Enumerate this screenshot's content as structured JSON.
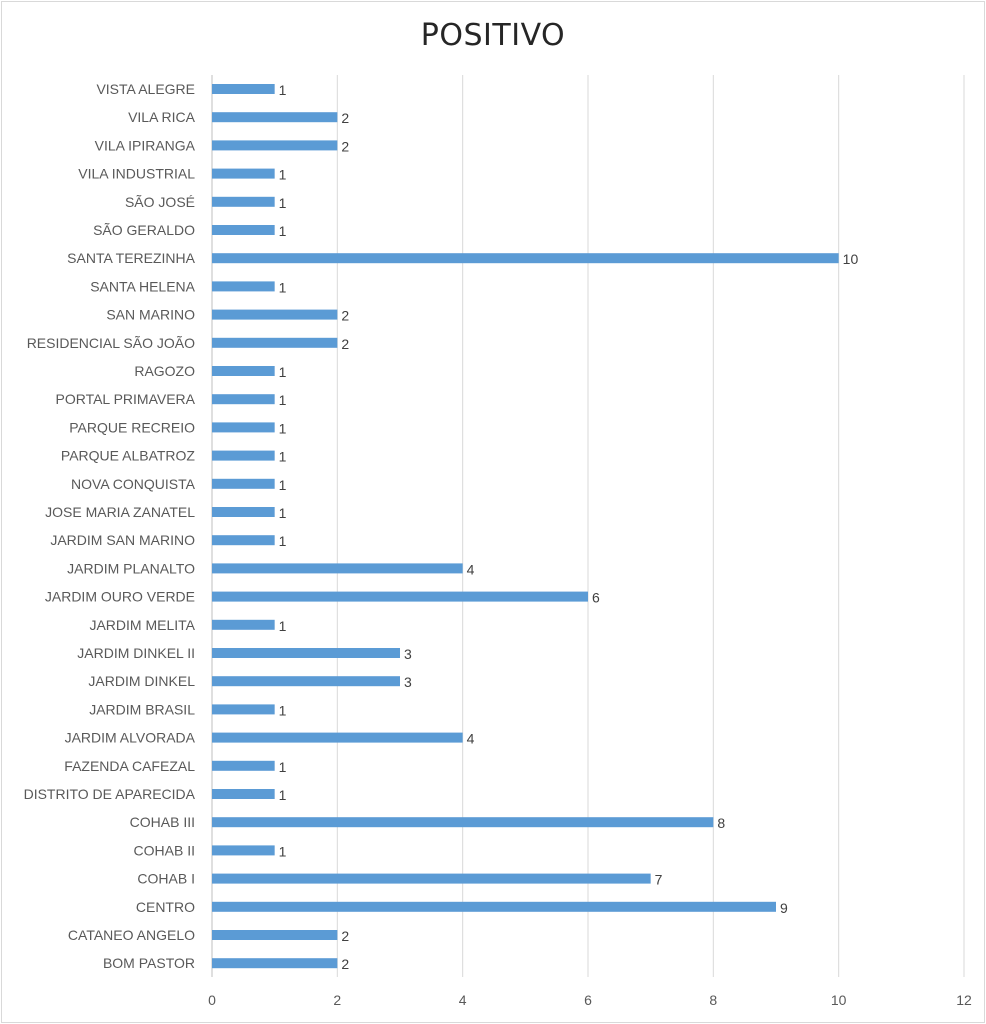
{
  "chart_data": {
    "type": "bar",
    "orientation": "horizontal",
    "title": "POSITIVO",
    "categories": [
      "VISTA ALEGRE",
      "VILA RICA",
      "VILA IPIRANGA",
      "VILA INDUSTRIAL",
      "SÃO JOSÉ",
      "SÃO GERALDO",
      "SANTA TEREZINHA",
      "SANTA HELENA",
      "SAN MARINO",
      "RESIDENCIAL SÃO JOÃO",
      "RAGOZO",
      "PORTAL PRIMAVERA",
      "PARQUE RECREIO",
      "PARQUE ALBATROZ",
      "NOVA CONQUISTA",
      "JOSE MARIA ZANATEL",
      "JARDIM SAN MARINO",
      "JARDIM PLANALTO",
      "JARDIM OURO VERDE",
      "JARDIM MELITA",
      "JARDIM DINKEL II",
      "JARDIM DINKEL",
      "JARDIM BRASIL",
      "JARDIM ALVORADA",
      "FAZENDA CAFEZAL",
      "DISTRITO DE APARECIDA",
      "COHAB III",
      "COHAB II",
      "COHAB I",
      "CENTRO",
      "CATANEO ANGELO",
      "BOM PASTOR"
    ],
    "values": [
      1,
      2,
      2,
      1,
      1,
      1,
      10,
      1,
      2,
      2,
      1,
      1,
      1,
      1,
      1,
      1,
      1,
      4,
      6,
      1,
      3,
      3,
      1,
      4,
      1,
      1,
      8,
      1,
      7,
      9,
      2,
      2
    ],
    "xlim": [
      0,
      12
    ],
    "xticks": [
      "0",
      "2",
      "4",
      "6",
      "8",
      "10",
      "12"
    ],
    "grid": true,
    "bar_color": "#5b9bd5",
    "grid_color": "#d9d9d9"
  }
}
